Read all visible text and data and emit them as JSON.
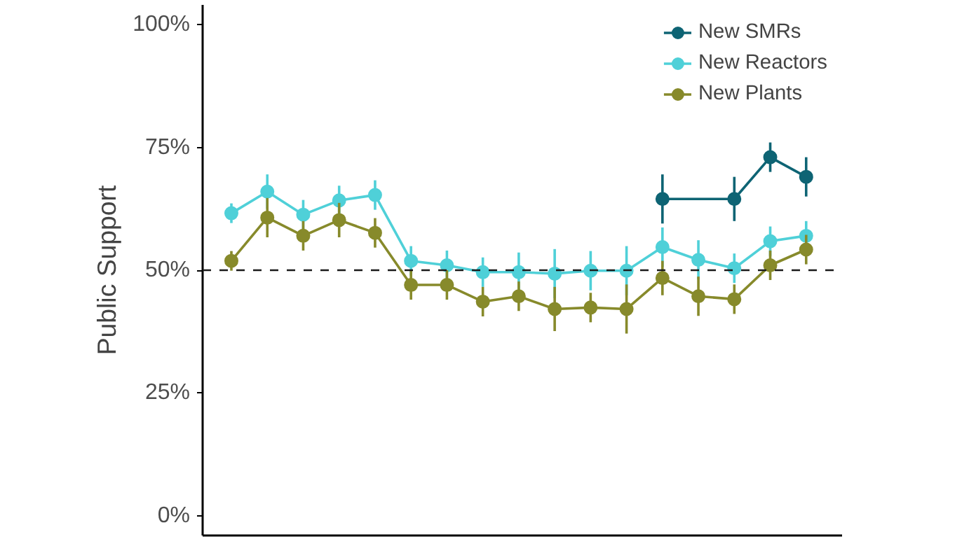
{
  "chart_data": {
    "type": "line",
    "ylabel": "Public Support",
    "categories": [
      null,
      null,
      null,
      null,
      null,
      null,
      null,
      null,
      null,
      null,
      null,
      null,
      null,
      null,
      null,
      null,
      null
    ],
    "series": [
      {
        "name": "New SMRs",
        "color": "#0e6474",
        "values": [
          null,
          null,
          null,
          null,
          null,
          null,
          null,
          null,
          null,
          null,
          null,
          null,
          64.5,
          null,
          64.5,
          73,
          69
        ],
        "errors": [
          null,
          null,
          null,
          null,
          null,
          null,
          null,
          null,
          null,
          null,
          null,
          null,
          5,
          null,
          4.5,
          3,
          4
        ]
      },
      {
        "name": "New Reactors",
        "color": "#4fd0d8",
        "values": [
          61.6,
          66,
          61.3,
          64.2,
          65.3,
          51.9,
          51,
          49.6,
          49.6,
          49.3,
          49.9,
          49.9,
          54.7,
          52.1,
          50.4,
          55.9,
          57
        ],
        "errors": [
          2,
          3.5,
          3,
          3,
          3,
          3,
          3,
          3,
          4,
          5,
          4,
          5,
          4,
          4,
          3,
          3,
          3
        ]
      },
      {
        "name": "New Plants",
        "color": "#878a2b",
        "values": [
          51.9,
          60.7,
          57,
          60.2,
          57.6,
          47,
          47,
          43.6,
          44.7,
          42.1,
          42.4,
          42.1,
          48.4,
          44.7,
          44.1,
          51,
          54.2
        ],
        "errors": [
          2,
          4,
          3,
          3.5,
          3,
          3,
          3,
          3,
          3,
          4.5,
          3,
          5,
          3.5,
          4,
          3,
          3,
          3
        ]
      }
    ],
    "ylim": [
      -4,
      104
    ],
    "yticks": [
      {
        "value": 0,
        "label": "0%"
      },
      {
        "value": 25,
        "label": "25%"
      },
      {
        "value": 50,
        "label": "50%"
      },
      {
        "value": 75,
        "label": "75%"
      },
      {
        "value": 100,
        "label": "100%"
      }
    ],
    "ref_lines": [
      {
        "axis": "y",
        "value": 50,
        "line_style": "dashed",
        "color": "#1a1a1a"
      }
    ],
    "grid": false,
    "legend": "top right",
    "marker": "circle",
    "line_style": "solid"
  }
}
